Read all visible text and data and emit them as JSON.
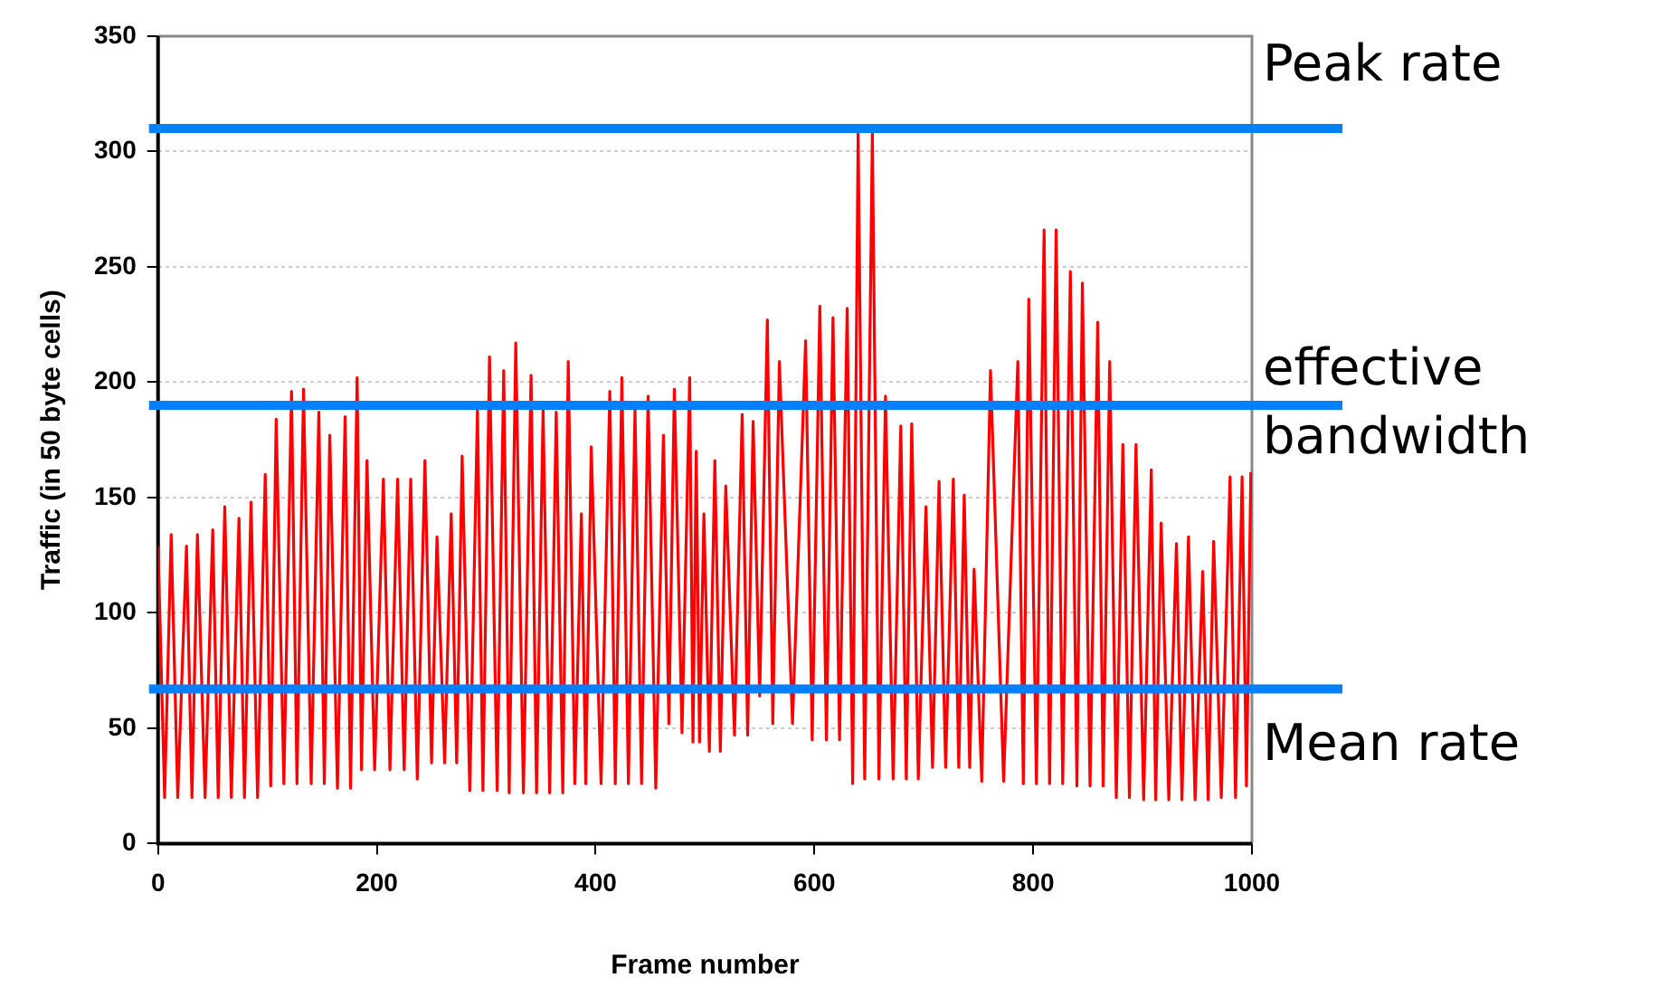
{
  "chart_data": {
    "type": "line",
    "xlabel": "Frame number",
    "ylabel": "Traffic (in 50 byte cells)",
    "x": [
      0,
      6,
      12,
      18,
      26,
      31,
      36,
      43,
      50,
      55,
      61,
      67,
      74,
      79,
      85,
      91,
      98,
      103,
      108,
      115,
      122,
      127,
      133,
      140,
      147,
      152,
      157,
      164,
      171,
      176,
      182,
      186,
      191,
      198,
      206,
      212,
      219,
      225,
      231,
      237,
      244,
      250,
      255,
      262,
      268,
      273,
      278,
      285,
      292,
      297,
      303,
      310,
      316,
      321,
      327,
      334,
      341,
      346,
      352,
      358,
      364,
      370,
      375,
      381,
      387,
      391,
      396,
      405,
      413,
      418,
      424,
      430,
      436,
      442,
      448,
      455,
      462,
      467,
      472,
      479,
      486,
      489,
      492,
      495,
      499,
      504,
      509,
      514,
      519,
      527,
      534,
      539,
      544,
      550,
      557,
      562,
      568,
      580,
      592,
      598,
      605,
      611,
      617,
      623,
      630,
      635,
      640,
      646,
      653,
      659,
      665,
      672,
      679,
      684,
      689,
      695,
      702,
      708,
      714,
      720,
      727,
      732,
      737,
      742,
      746,
      753,
      761,
      773,
      786,
      791,
      796,
      803,
      810,
      815,
      821,
      827,
      834,
      840,
      845,
      852,
      859,
      864,
      870,
      876,
      882,
      888,
      894,
      901,
      908,
      912,
      917,
      924,
      931,
      936,
      942,
      948,
      955,
      960,
      965,
      972,
      980,
      985,
      991,
      995,
      999
    ],
    "series": [
      {
        "color": "#ff0000",
        "values": [
          129,
          20,
          134,
          20,
          129,
          20,
          134,
          20,
          136,
          20,
          146,
          20,
          141,
          20,
          148,
          20,
          160,
          25,
          184,
          26,
          196,
          26,
          197,
          26,
          187,
          26,
          177,
          24,
          185,
          24,
          202,
          32,
          166,
          32,
          158,
          32,
          158,
          32,
          158,
          28,
          166,
          35,
          133,
          35,
          143,
          35,
          168,
          23,
          188,
          23,
          211,
          23,
          205,
          22,
          217,
          22,
          203,
          22,
          188,
          22,
          187,
          22,
          209,
          26,
          143,
          26,
          172,
          26,
          196,
          26,
          202,
          26,
          188,
          26,
          194,
          24,
          177,
          52,
          197,
          48,
          202,
          44,
          170,
          44,
          143,
          40,
          166,
          40,
          155,
          47,
          186,
          47,
          183,
          64,
          227,
          52,
          209,
          52,
          218,
          45,
          233,
          45,
          228,
          45,
          232,
          26,
          308,
          28,
          308,
          28,
          194,
          28,
          181,
          28,
          182,
          28,
          146,
          33,
          157,
          33,
          158,
          33,
          151,
          33,
          119,
          27,
          205,
          27,
          209,
          26,
          236,
          26,
          266,
          26,
          266,
          26,
          248,
          25,
          243,
          25,
          226,
          25,
          209,
          20,
          173,
          20,
          173,
          19,
          162,
          19,
          139,
          19,
          130,
          19,
          133,
          19,
          118,
          19,
          131,
          20,
          159,
          20,
          159,
          25,
          161
        ]
      }
    ],
    "xlim": [
      0,
      1000
    ],
    "xticks": [
      0,
      200,
      400,
      600,
      800,
      1000
    ],
    "ylim": [
      0,
      350
    ],
    "yticks": [
      0,
      50,
      100,
      150,
      200,
      250,
      300,
      350
    ],
    "grid": "y",
    "legend": false,
    "marker": "none",
    "line_style": "solid",
    "ref_lines": [
      {
        "axis": "y",
        "value": 310,
        "label": "Peak rate",
        "color": "#0080ff"
      },
      {
        "axis": "y",
        "value": 190,
        "label": "effective bandwidth",
        "color": "#0080ff"
      },
      {
        "axis": "y",
        "value": 67,
        "label": "Mean rate",
        "color": "#0080ff"
      }
    ]
  }
}
